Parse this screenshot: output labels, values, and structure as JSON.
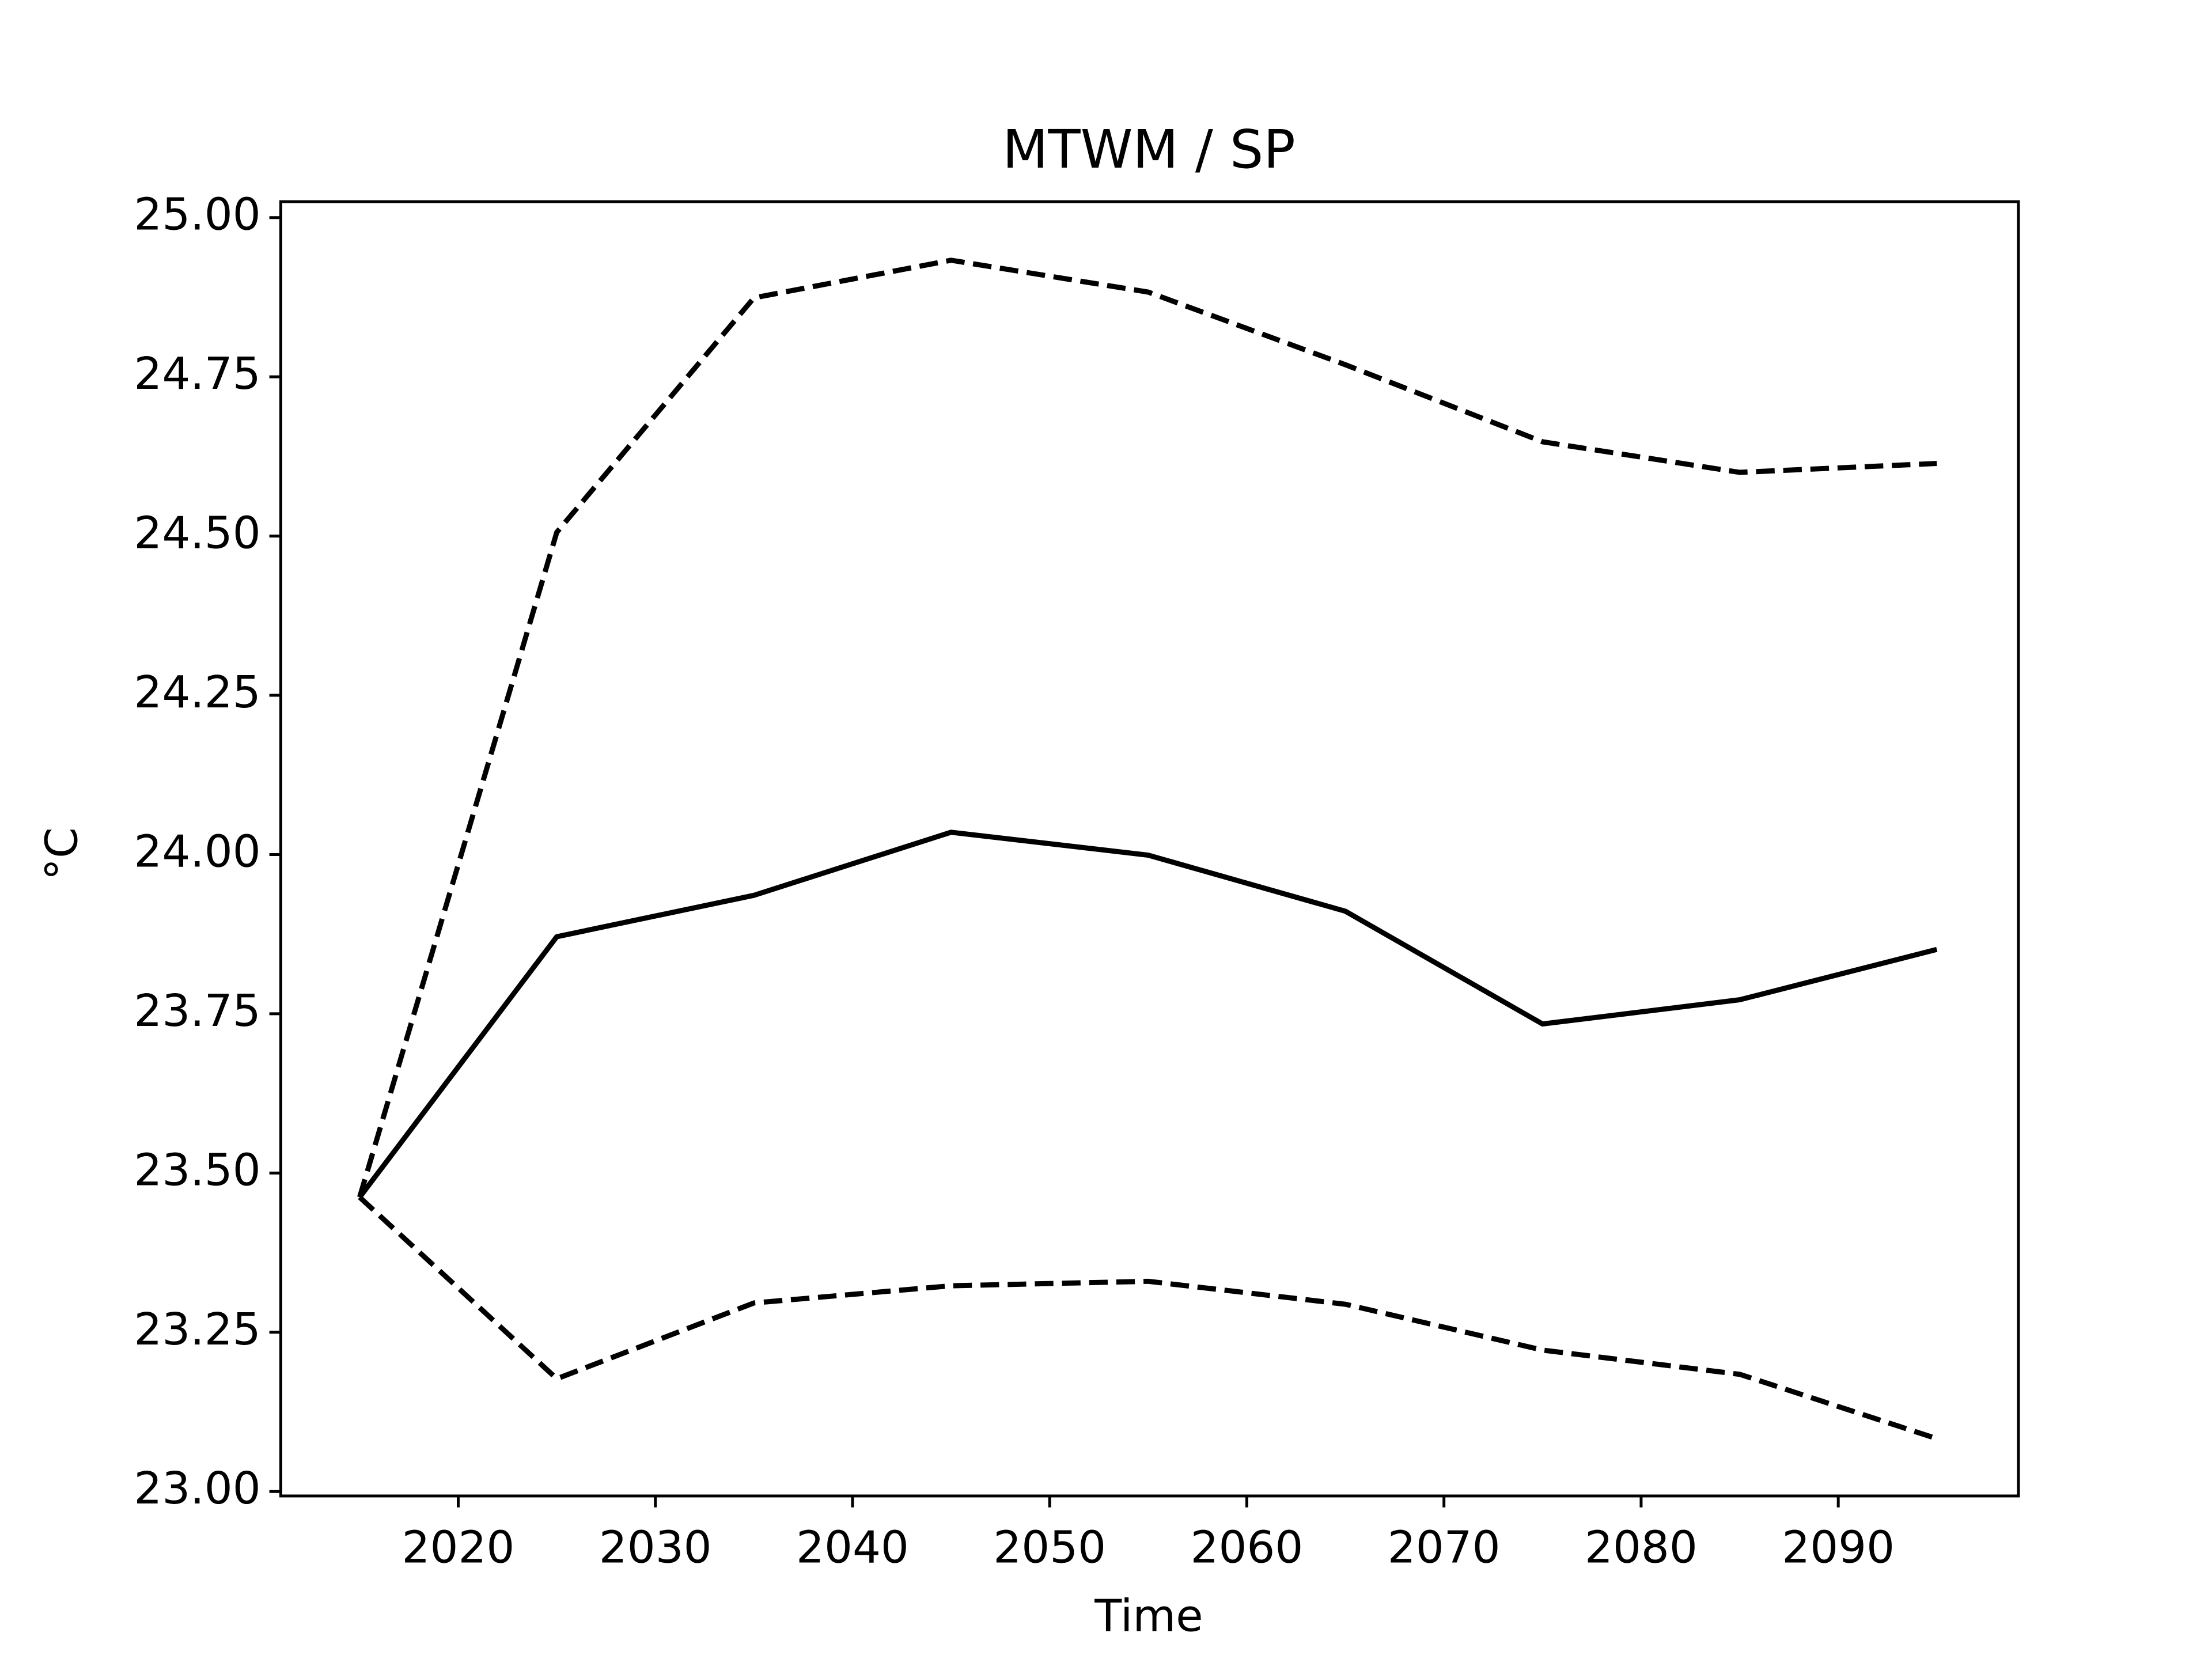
{
  "chart_data": {
    "type": "line",
    "title": "MTWM / SP",
    "xlabel": "Time",
    "ylabel": "°C",
    "x": [
      2015,
      2025,
      2035,
      2045,
      2055,
      2065,
      2075,
      2085,
      2095
    ],
    "series": [
      {
        "color": "#000000",
        "linestyle": "solid",
        "values": [
          23.462,
          23.871,
          23.936,
          24.035,
          23.999,
          23.911,
          23.734,
          23.772,
          23.851
        ]
      },
      {
        "color": "#000000",
        "linestyle": "dashed",
        "values": [
          23.462,
          24.506,
          24.874,
          24.933,
          24.883,
          24.769,
          24.648,
          24.6,
          24.614
        ]
      },
      {
        "color": "#000000",
        "linestyle": "dashed",
        "values": [
          23.462,
          23.177,
          23.296,
          23.323,
          23.33,
          23.294,
          23.222,
          23.184,
          23.083
        ]
      }
    ],
    "xlim": [
      2011,
      2099.14
    ],
    "xticks": [
      2020,
      2030,
      2040,
      2050,
      2060,
      2070,
      2080,
      2090
    ],
    "ylim": [
      22.993,
      25.025
    ],
    "yticks": [
      {
        "value": 23,
        "label": "23.00"
      },
      {
        "value": 23.25,
        "label": "23.25"
      },
      {
        "value": 23.5,
        "label": "23.50"
      },
      {
        "value": 23.75,
        "label": "23.75"
      },
      {
        "value": 24,
        "label": "24.00"
      },
      {
        "value": 24.25,
        "label": "24.25"
      },
      {
        "value": 24.5,
        "label": "24.50"
      },
      {
        "value": 24.75,
        "label": "24.75"
      },
      {
        "value": 25,
        "label": "25.00"
      }
    ],
    "grid": false
  }
}
